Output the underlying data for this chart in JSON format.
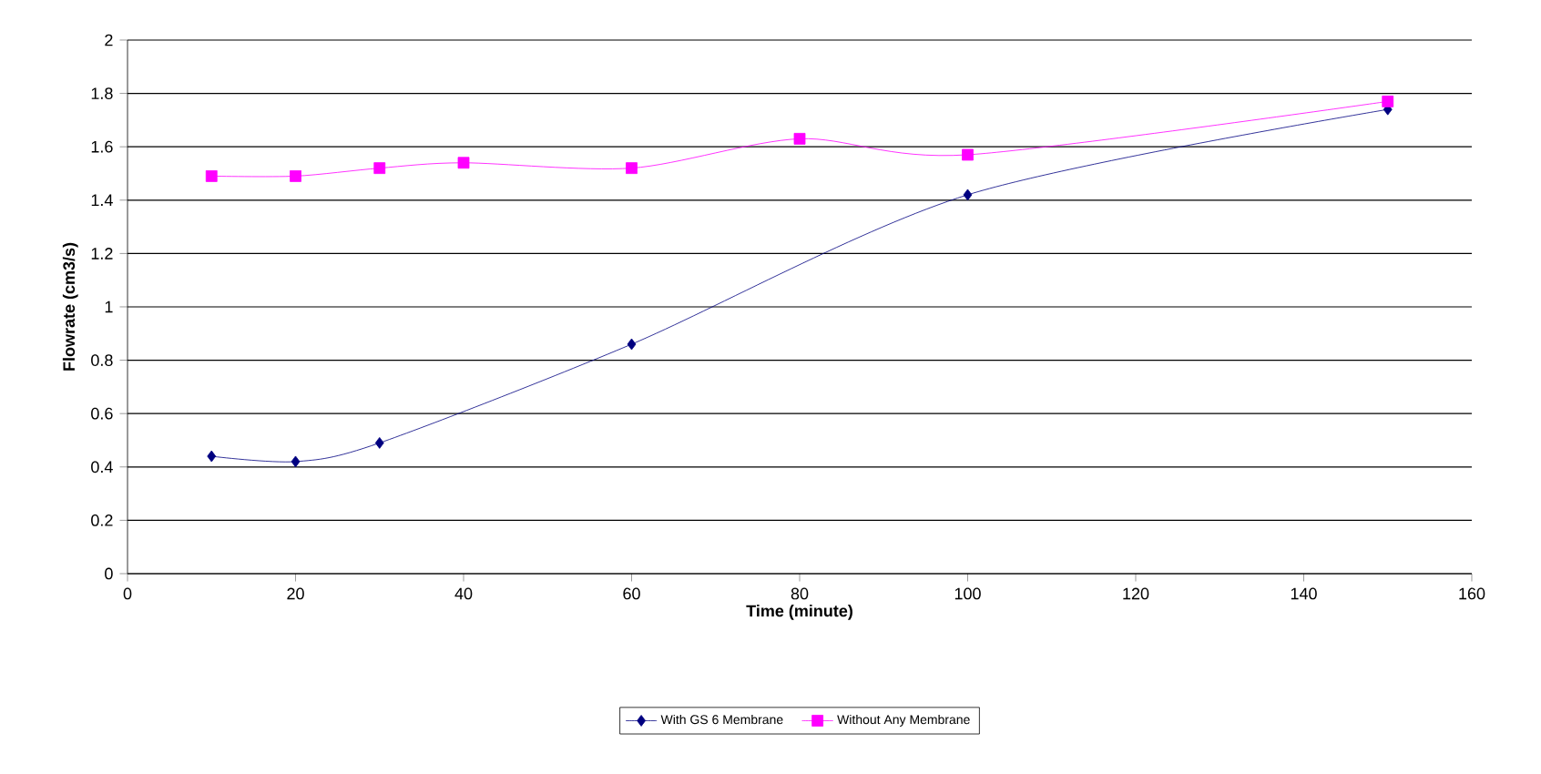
{
  "chart_data": {
    "type": "line",
    "xlabel": "Time (minute)",
    "ylabel": "Flowrate (cm3/s)",
    "xlim": [
      0,
      160
    ],
    "xticks": [
      0,
      20,
      40,
      60,
      80,
      100,
      120,
      140,
      160
    ],
    "ylim": [
      0,
      2
    ],
    "yticks": [
      0,
      0.2,
      0.4,
      0.6,
      0.8,
      1,
      1.2,
      1.4,
      1.6,
      1.8,
      2
    ],
    "grid": "y",
    "legend": "bottom",
    "series": [
      {
        "name": "With GS 6 Membrane",
        "color": "#000080",
        "marker": "diamond",
        "x": [
          10,
          20,
          30,
          60,
          100,
          150
        ],
        "values": [
          0.44,
          0.42,
          0.49,
          0.86,
          1.42,
          1.74
        ]
      },
      {
        "name": "Without Any Membrane",
        "color": "#ff00ff",
        "marker": "square",
        "x": [
          10,
          20,
          30,
          40,
          60,
          80,
          100,
          150
        ],
        "values": [
          1.49,
          1.49,
          1.52,
          1.54,
          1.52,
          1.63,
          1.57,
          1.77
        ]
      }
    ]
  }
}
